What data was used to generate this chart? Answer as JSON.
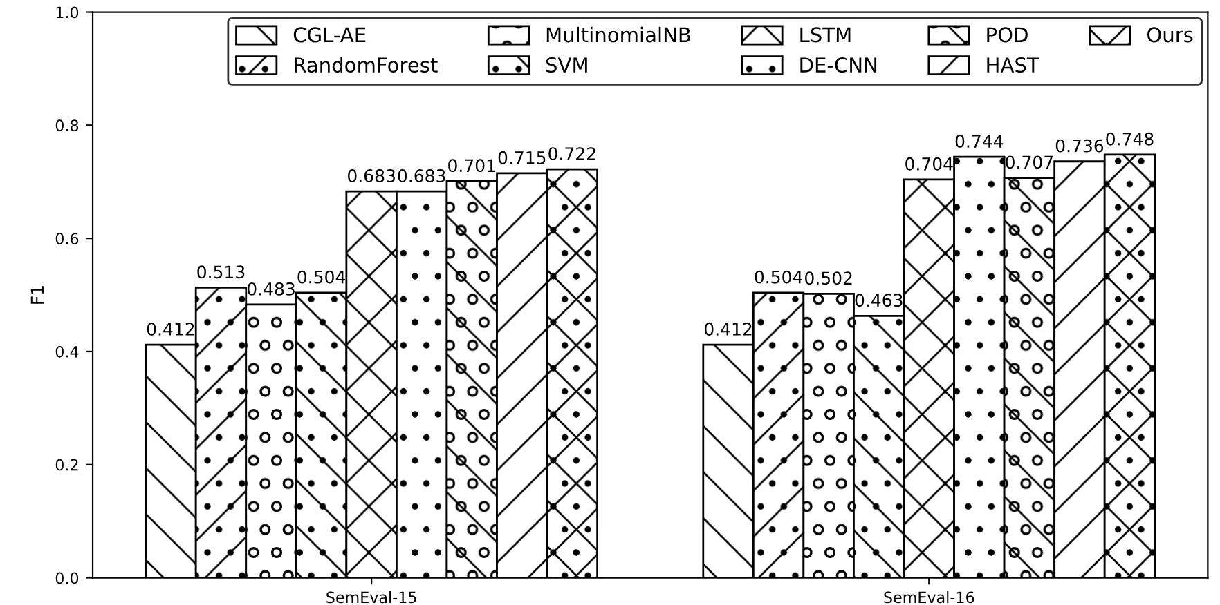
{
  "chart_data": {
    "type": "bar",
    "ylabel": "F1",
    "categories": [
      "SemEval-15",
      "SemEval-16"
    ],
    "series": [
      {
        "name": "CGL-AE",
        "color": "#000000",
        "values": [
          0.412,
          0.412
        ]
      },
      {
        "name": "RandomForest",
        "color": "#000000",
        "values": [
          0.513,
          0.504
        ]
      },
      {
        "name": "MultinomialNB",
        "color": "#000000",
        "values": [
          0.483,
          0.502
        ]
      },
      {
        "name": "SVM",
        "color": "#000000",
        "values": [
          0.504,
          0.463
        ]
      },
      {
        "name": "LSTM",
        "color": "#000000",
        "values": [
          0.683,
          0.704
        ]
      },
      {
        "name": "DE-CNN",
        "color": "#000000",
        "values": [
          0.683,
          0.744
        ]
      },
      {
        "name": "POD",
        "color": "#000000",
        "values": [
          0.701,
          0.707
        ]
      },
      {
        "name": "HAST",
        "color": "#000000",
        "values": [
          0.715,
          0.736
        ]
      },
      {
        "name": "Ours",
        "color": "#000000",
        "values": [
          0.722,
          0.748
        ]
      }
    ],
    "ylim": [
      0,
      1
    ],
    "yticks": [
      {
        "value": 0,
        "label": "0.0"
      },
      {
        "value": 0.2,
        "label": "0.2"
      },
      {
        "value": 0.4,
        "label": "0.4"
      },
      {
        "value": 0.6,
        "label": "0.6"
      },
      {
        "value": 0.8,
        "label": "0.8"
      },
      {
        "value": 1,
        "label": "1.0"
      }
    ],
    "data_labels": true,
    "legend": "top right",
    "grid": false
  }
}
